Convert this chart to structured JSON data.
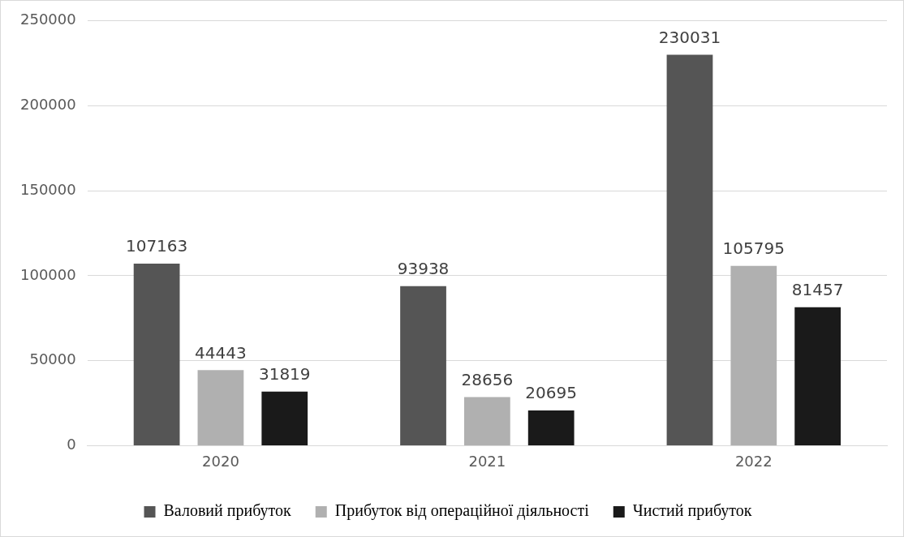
{
  "chart_data": {
    "type": "bar",
    "categories": [
      "2020",
      "2021",
      "2022"
    ],
    "series": [
      {
        "name": "Валовий прибуток",
        "color": "#555555",
        "values": [
          107163,
          93938,
          230031
        ]
      },
      {
        "name": "Прибуток від операційної діяльності",
        "color": "#b0b0b0",
        "values": [
          44443,
          28656,
          105795
        ]
      },
      {
        "name": "Чистий прибуток",
        "color": "#1a1a1a",
        "values": [
          31819,
          20695,
          81457
        ]
      }
    ],
    "ylim": [
      0,
      250000
    ],
    "yticks": [
      0,
      50000,
      100000,
      150000,
      200000,
      250000
    ],
    "grid": "y",
    "legend": "bottom",
    "data_labels": true
  }
}
